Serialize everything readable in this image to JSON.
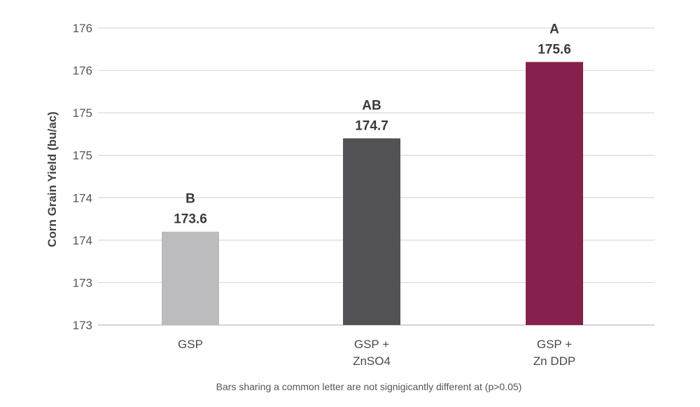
{
  "chart_data": {
    "type": "bar",
    "categories": [
      [
        "GSP"
      ],
      [
        "GSP +",
        "ZnSO4"
      ],
      [
        "GSP +",
        "Zn DDP"
      ]
    ],
    "values": [
      173.6,
      174.7,
      175.6
    ],
    "value_labels": [
      "173.6",
      "174.7",
      "175.6"
    ],
    "significance_letters": [
      "B",
      "AB",
      "A"
    ],
    "bar_colors": [
      "#bcbcbe",
      "#515156",
      "#86204c"
    ],
    "ylabel": "Corn Grain Yield (bu/ac)",
    "ylim": [
      172.5,
      176.0
    ],
    "y_ticks": [
      172.5,
      173.0,
      173.5,
      174.0,
      174.5,
      175.0,
      175.5,
      176.0
    ],
    "y_tick_labels": [
      "173",
      "173",
      "174",
      "174",
      "175",
      "175",
      "176",
      "176"
    ],
    "grid": true,
    "footnote": "Bars sharing a common letter are not signigicantly different at (p>0.05)"
  }
}
